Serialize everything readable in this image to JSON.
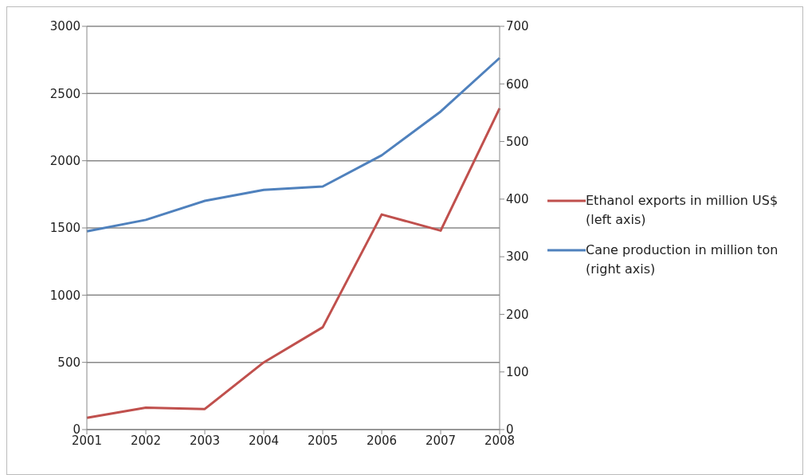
{
  "chart_data": {
    "type": "line",
    "categories": [
      "2001",
      "2002",
      "2003",
      "2004",
      "2005",
      "2006",
      "2007",
      "2008"
    ],
    "series": [
      {
        "name": "Ethanol exports in million US$ (left axis)",
        "color": "#c0504d",
        "values": [
          88,
          163,
          153,
          500,
          761,
          1600,
          1480,
          2390
        ]
      },
      {
        "name": "Cane production in million ton (right axis)",
        "color": "#4f81bd",
        "axis": "y2",
        "values": [
          344,
          364,
          397,
          416,
          422,
          476,
          552,
          645
        ]
      }
    ],
    "ylim": [
      0,
      3000
    ],
    "yticks": [
      0,
      500,
      1000,
      1500,
      2000,
      2500,
      3000
    ],
    "y2lim": [
      0,
      700
    ],
    "y2ticks": [
      0,
      100,
      200,
      300,
      400,
      500,
      600,
      700
    ],
    "grid": "y",
    "legend": "right",
    "marker": "none",
    "line_style": "solid"
  }
}
